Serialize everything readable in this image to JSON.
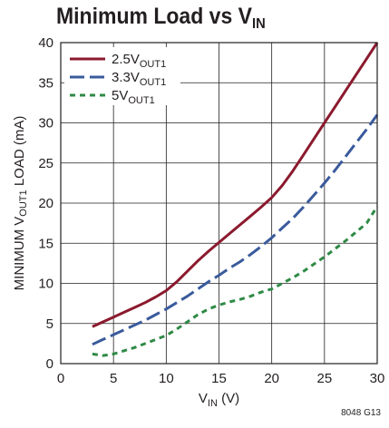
{
  "chart_data": {
    "type": "line",
    "title": {
      "main": "Minimum Load vs V",
      "sub": "IN"
    },
    "xlabel": {
      "main": "V",
      "sub": "IN",
      "suffix": " (V)"
    },
    "ylabel": {
      "prefix": "MINIMUM V",
      "sub": "OUT1",
      "suffix": " LOAD (mA)"
    },
    "xlim": [
      0,
      30
    ],
    "ylim": [
      0,
      40
    ],
    "xticks": [
      0,
      5,
      10,
      15,
      20,
      25,
      30
    ],
    "yticks": [
      0,
      5,
      10,
      15,
      20,
      25,
      30,
      35,
      40
    ],
    "grid": true,
    "legend_position": "top-left",
    "figure_code": "8048 G13",
    "series": [
      {
        "name": {
          "main": "2.5V",
          "sub": "OUT1"
        },
        "color": "#8b1a2e",
        "dash": "solid",
        "x": [
          3,
          4,
          5,
          6,
          7,
          8,
          9,
          10,
          11,
          12,
          13,
          14,
          15,
          16,
          17,
          18,
          19,
          20,
          21,
          22,
          23,
          24,
          25,
          26,
          27,
          28,
          29,
          30
        ],
        "y": [
          4.6,
          5.2,
          5.8,
          6.4,
          7.0,
          7.6,
          8.3,
          9.1,
          10.2,
          11.5,
          12.8,
          14.0,
          15.1,
          16.2,
          17.3,
          18.4,
          19.5,
          20.7,
          22.2,
          24.0,
          26.0,
          28.0,
          30.0,
          32.0,
          34.0,
          36.0,
          38.0,
          40.0
        ]
      },
      {
        "name": {
          "main": "3.3V",
          "sub": "OUT1"
        },
        "color": "#3a5b9c",
        "dash": "long-dash",
        "x": [
          3,
          4,
          5,
          6,
          7,
          8,
          9,
          10,
          11,
          12,
          13,
          14,
          15,
          16,
          17,
          18,
          19,
          20,
          21,
          22,
          23,
          24,
          25,
          26,
          27,
          28,
          29,
          30
        ],
        "y": [
          2.4,
          3.0,
          3.6,
          4.2,
          4.8,
          5.4,
          6.1,
          6.8,
          7.6,
          8.4,
          9.3,
          10.2,
          11.0,
          11.9,
          12.7,
          13.6,
          14.6,
          15.7,
          16.9,
          18.1,
          19.5,
          21.0,
          22.5,
          24.1,
          25.8,
          27.5,
          29.2,
          31.0
        ]
      },
      {
        "name": {
          "main": "5V",
          "sub": "OUT1"
        },
        "color": "#2f8a46",
        "dash": "short-dash",
        "x": [
          3,
          4,
          5,
          6,
          7,
          8,
          9,
          10,
          11,
          12,
          13,
          14,
          15,
          16,
          17,
          18,
          19,
          20,
          21,
          22,
          23,
          24,
          25,
          26,
          27,
          28,
          29,
          30
        ],
        "y": [
          1.2,
          1.0,
          1.2,
          1.6,
          2.0,
          2.5,
          3.0,
          3.5,
          4.3,
          5.2,
          6.1,
          6.8,
          7.3,
          7.7,
          8.0,
          8.4,
          8.9,
          9.3,
          10.0,
          10.7,
          11.5,
          12.4,
          13.3,
          14.3,
          15.3,
          16.4,
          17.5,
          19.6
        ]
      }
    ]
  }
}
